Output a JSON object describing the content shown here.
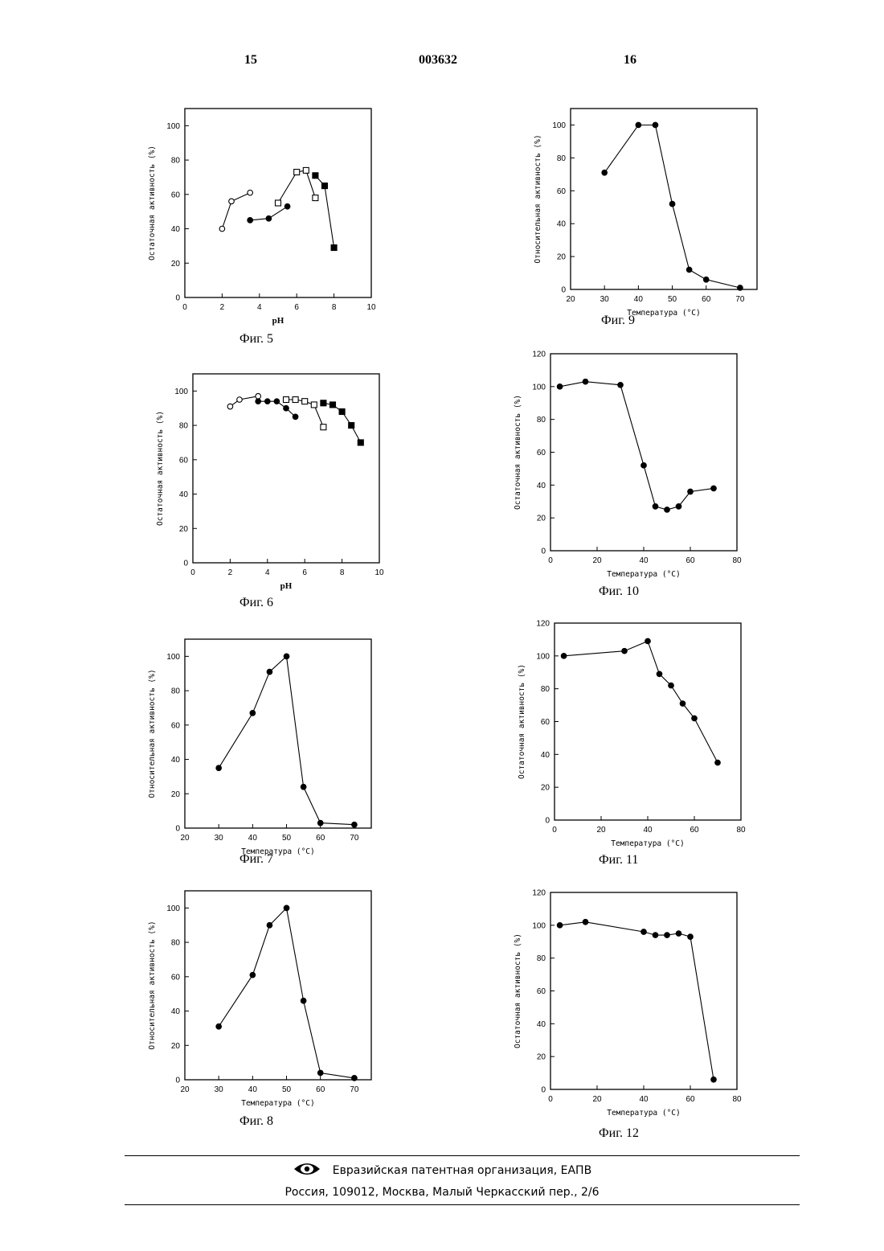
{
  "header": {
    "left": "15",
    "center": "003632",
    "right": "16"
  },
  "footer": {
    "org": "Евразийская патентная организация, ЕАПВ",
    "address": "Россия, 109012, Москва, Малый Черкасский пер., 2/6"
  },
  "chart_data": [
    {
      "id": "fig5",
      "type": "line",
      "caption": "Фиг. 5",
      "ylabel": "Остаточная активность (%)",
      "xlabel": "pH",
      "xlim": [
        0,
        10
      ],
      "ylim": [
        0,
        110
      ],
      "xticks": [
        0,
        2,
        4,
        6,
        8,
        10
      ],
      "yticks": [
        0,
        20,
        40,
        60,
        80,
        100
      ],
      "series": [
        {
          "marker": "circle-open",
          "x": [
            2,
            2.5,
            3.5
          ],
          "y": [
            40,
            56,
            61
          ]
        },
        {
          "marker": "circle-filled",
          "x": [
            3.5,
            4.5,
            5.5
          ],
          "y": [
            45,
            46,
            53
          ]
        },
        {
          "marker": "square-open",
          "x": [
            5,
            6,
            6.5,
            7
          ],
          "y": [
            55,
            73,
            74,
            58
          ]
        },
        {
          "marker": "square-filled",
          "x": [
            7,
            7.5,
            8
          ],
          "y": [
            71,
            65,
            29
          ]
        }
      ]
    },
    {
      "id": "fig6",
      "type": "line",
      "caption": "Фиг. 6",
      "ylabel": "Остаточная активность (%)",
      "xlabel": "pH",
      "xlim": [
        0,
        10
      ],
      "ylim": [
        0,
        110
      ],
      "xticks": [
        0,
        2,
        4,
        6,
        8,
        10
      ],
      "yticks": [
        0,
        20,
        40,
        60,
        80,
        100
      ],
      "series": [
        {
          "marker": "circle-open",
          "x": [
            2,
            2.5,
            3.5
          ],
          "y": [
            91,
            95,
            97
          ]
        },
        {
          "marker": "circle-filled",
          "x": [
            3.5,
            4,
            4.5,
            5,
            5.5
          ],
          "y": [
            94,
            94,
            94,
            90,
            85
          ]
        },
        {
          "marker": "square-open",
          "x": [
            5,
            5.5,
            6,
            6.5,
            7
          ],
          "y": [
            95,
            95,
            94,
            92,
            79
          ]
        },
        {
          "marker": "square-filled",
          "x": [
            7,
            7.5,
            8,
            8.5,
            9
          ],
          "y": [
            93,
            92,
            88,
            80,
            70
          ]
        }
      ]
    },
    {
      "id": "fig7",
      "type": "line",
      "caption": "Фиг. 7",
      "ylabel": "Относительная активность (%)",
      "xlabel": "Температура (°C)",
      "xlim": [
        20,
        75
      ],
      "ylim": [
        0,
        110
      ],
      "xticks": [
        20,
        30,
        40,
        50,
        60,
        70
      ],
      "yticks": [
        0,
        20,
        40,
        60,
        80,
        100
      ],
      "series": [
        {
          "marker": "circle-filled",
          "x": [
            30,
            40,
            45,
            50,
            55,
            60,
            70
          ],
          "y": [
            35,
            67,
            91,
            100,
            24,
            3,
            2
          ]
        }
      ]
    },
    {
      "id": "fig8",
      "type": "line",
      "caption": "Фиг. 8",
      "ylabel": "Относительная активность (%)",
      "xlabel": "Температура (°C)",
      "xlim": [
        20,
        75
      ],
      "ylim": [
        0,
        110
      ],
      "xticks": [
        20,
        30,
        40,
        50,
        60,
        70
      ],
      "yticks": [
        0,
        20,
        40,
        60,
        80,
        100
      ],
      "series": [
        {
          "marker": "circle-filled",
          "x": [
            30,
            40,
            45,
            50,
            55,
            60,
            70
          ],
          "y": [
            31,
            61,
            90,
            100,
            46,
            4,
            1
          ]
        }
      ]
    },
    {
      "id": "fig9",
      "type": "line",
      "caption": "Фиг. 9",
      "ylabel": "Относительная активность (%)",
      "xlabel": "Температура (°C)",
      "xlim": [
        20,
        75
      ],
      "ylim": [
        0,
        110
      ],
      "xticks": [
        20,
        30,
        40,
        50,
        60,
        70
      ],
      "yticks": [
        0,
        20,
        40,
        60,
        80,
        100
      ],
      "series": [
        {
          "marker": "circle-filled",
          "x": [
            30,
            40,
            45,
            50,
            55,
            60,
            70
          ],
          "y": [
            71,
            100,
            100,
            52,
            12,
            6,
            1
          ]
        }
      ]
    },
    {
      "id": "fig10",
      "type": "line",
      "caption": "Фиг. 10",
      "ylabel": "Остаточная активность (%)",
      "xlabel": "Температура (°C)",
      "xlim": [
        0,
        80
      ],
      "ylim": [
        0,
        120
      ],
      "xticks": [
        0,
        20,
        40,
        60,
        80
      ],
      "yticks": [
        0,
        20,
        40,
        60,
        80,
        100,
        120
      ],
      "series": [
        {
          "marker": "circle-filled",
          "x": [
            4,
            15,
            30,
            40,
            45,
            50,
            55,
            60,
            70
          ],
          "y": [
            100,
            103,
            101,
            52,
            27,
            25,
            27,
            36,
            38
          ]
        }
      ]
    },
    {
      "id": "fig11",
      "type": "line",
      "caption": "Фиг. 11",
      "ylabel": "Остаточная активность (%)",
      "xlabel": "Температура (°C)",
      "xlim": [
        0,
        80
      ],
      "ylim": [
        0,
        120
      ],
      "xticks": [
        0,
        20,
        40,
        60,
        80
      ],
      "yticks": [
        0,
        20,
        40,
        60,
        80,
        100,
        120
      ],
      "series": [
        {
          "marker": "circle-filled",
          "x": [
            4,
            30,
            40,
            45,
            50,
            55,
            60,
            70
          ],
          "y": [
            100,
            103,
            109,
            89,
            82,
            71,
            62,
            35
          ]
        }
      ]
    },
    {
      "id": "fig12",
      "type": "line",
      "caption": "Фиг. 12",
      "ylabel": "Остаточная активность (%)",
      "xlabel": "Температура (°C)",
      "xlim": [
        0,
        80
      ],
      "ylim": [
        0,
        120
      ],
      "xticks": [
        0,
        20,
        40,
        60,
        80
      ],
      "yticks": [
        0,
        20,
        40,
        60,
        80,
        100,
        120
      ],
      "series": [
        {
          "marker": "circle-filled",
          "x": [
            4,
            15,
            40,
            45,
            50,
            55,
            60,
            70
          ],
          "y": [
            100,
            102,
            96,
            94,
            94,
            95,
            93,
            6
          ]
        }
      ]
    }
  ]
}
